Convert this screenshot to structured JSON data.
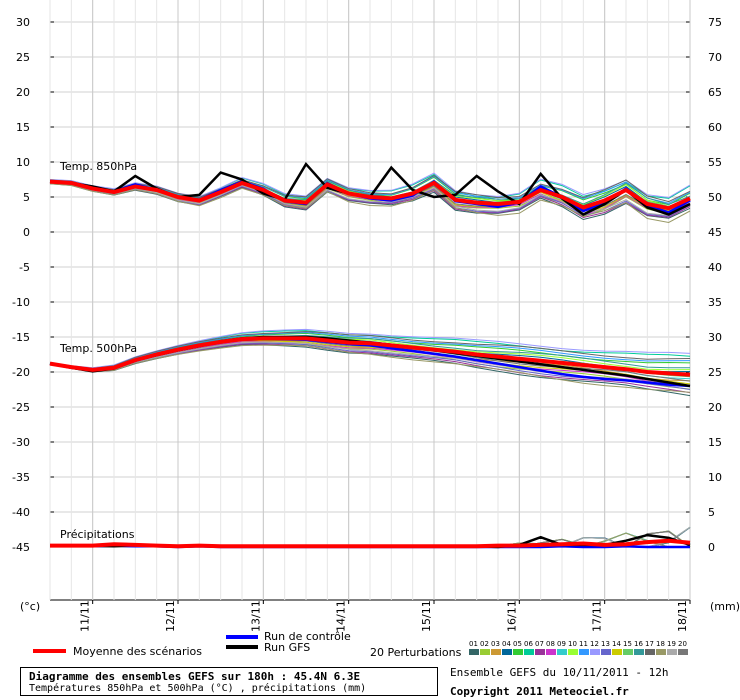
{
  "chart_data": {
    "type": "line",
    "panels": [
      {
        "label": "Temp. 850hPa",
        "unit_axis": "left"
      },
      {
        "label": "Temp. 500hPa",
        "unit_axis": "left"
      },
      {
        "label": "Précipitations",
        "unit_axis": "right"
      }
    ],
    "left_ticks": [
      "30",
      "25",
      "20",
      "15",
      "10",
      "5",
      "0",
      "-5",
      "-10",
      "-15",
      "-20",
      "-25",
      "-30",
      "-35",
      "-40",
      "-45"
    ],
    "right_ticks": [
      "75",
      "70",
      "65",
      "60",
      "55",
      "50",
      "45",
      "40",
      "35",
      "30",
      "25",
      "20",
      "15",
      "10",
      "5",
      "0"
    ],
    "left_unit": "(°c)",
    "right_unit": "(mm)",
    "x_dates": [
      "11/11",
      "12/11",
      "13/11",
      "14/11",
      "15/11",
      "16/11",
      "17/11",
      "18/11"
    ],
    "x_hours": [
      0,
      6,
      12,
      18,
      24,
      30,
      36,
      42,
      48,
      54,
      60,
      66,
      72,
      78,
      84,
      90,
      96,
      102,
      108,
      114,
      120,
      126,
      132,
      138,
      144,
      150,
      156,
      162,
      168,
      174,
      180
    ],
    "series": [
      {
        "name": "Moyenne des scénarios",
        "color": "#ff0000",
        "t850": [
          7.2,
          7.0,
          6.2,
          5.7,
          6.5,
          6.0,
          5.0,
          4.5,
          5.7,
          7.0,
          6.0,
          4.5,
          4.2,
          6.8,
          5.5,
          5.0,
          4.8,
          5.5,
          7.0,
          4.6,
          4.2,
          4.0,
          4.3,
          6.0,
          5.0,
          3.5,
          4.5,
          6.0,
          4.0,
          3.4,
          4.8
        ],
        "t500": [
          -18.8,
          -19.3,
          -19.7,
          -19.4,
          -18.3,
          -17.5,
          -16.8,
          -16.2,
          -15.7,
          -15.3,
          -15.2,
          -15.2,
          -15.2,
          -15.5,
          -15.8,
          -15.9,
          -16.2,
          -16.5,
          -16.8,
          -17.1,
          -17.5,
          -17.8,
          -18.1,
          -18.4,
          -18.7,
          -19.0,
          -19.3,
          -19.6,
          -20.0,
          -20.2,
          -20.4
        ],
        "precip": [
          0.2,
          0.2,
          0.2,
          0.4,
          0.3,
          0.2,
          0.1,
          0.2,
          0.1,
          0.1,
          0.1,
          0.1,
          0.1,
          0.1,
          0.1,
          0.1,
          0.1,
          0.1,
          0.1,
          0.1,
          0.1,
          0.2,
          0.2,
          0.3,
          0.4,
          0.5,
          0.3,
          0.4,
          0.7,
          0.9,
          0.6
        ]
      },
      {
        "name": "Run de contrôle",
        "color": "#0000ff",
        "t850": [
          7.2,
          7.0,
          6.3,
          5.8,
          6.8,
          6.0,
          5.0,
          4.6,
          6.0,
          7.2,
          6.2,
          4.4,
          4.0,
          7.0,
          5.5,
          4.8,
          4.5,
          5.2,
          7.2,
          4.4,
          4.0,
          3.6,
          4.2,
          6.5,
          5.0,
          3.0,
          4.2,
          6.2,
          3.8,
          2.8,
          4.5
        ],
        "t500": [
          -18.8,
          -19.4,
          -19.8,
          -19.5,
          -18.4,
          -17.6,
          -16.9,
          -16.3,
          -15.8,
          -15.4,
          -15.3,
          -15.3,
          -15.4,
          -15.7,
          -16.0,
          -16.2,
          -16.6,
          -17.0,
          -17.4,
          -17.8,
          -18.3,
          -18.8,
          -19.3,
          -19.8,
          -20.3,
          -20.7,
          -21.0,
          -21.2,
          -21.5,
          -21.8,
          -22.0
        ],
        "precip": [
          0.1,
          0.1,
          0.1,
          0.2,
          0.1,
          0.1,
          0.0,
          0.1,
          0.0,
          0.0,
          0.0,
          0.0,
          0.0,
          0.0,
          0.0,
          0.0,
          0.0,
          0.0,
          0.0,
          0.0,
          0.0,
          0.0,
          0.0,
          0.0,
          0.1,
          0.0,
          0.0,
          0.1,
          0.0,
          0.0,
          0.0
        ]
      },
      {
        "name": "Run GFS",
        "color": "#000000",
        "t850": [
          7.2,
          7.0,
          6.5,
          5.8,
          8.0,
          6.2,
          5.0,
          5.3,
          8.5,
          7.5,
          5.5,
          4.6,
          9.7,
          6.3,
          5.5,
          5.0,
          9.2,
          6.0,
          5.0,
          5.3,
          8.0,
          5.8,
          4.0,
          8.3,
          4.8,
          2.5,
          4.0,
          6.0,
          3.5,
          2.5,
          4.0
        ],
        "t500": [
          -18.8,
          -19.4,
          -19.9,
          -19.5,
          -18.3,
          -17.6,
          -16.9,
          -16.3,
          -15.6,
          -15.2,
          -15.0,
          -15.0,
          -15.0,
          -15.2,
          -15.5,
          -15.8,
          -16.1,
          -16.5,
          -16.9,
          -17.3,
          -17.7,
          -18.1,
          -18.5,
          -18.9,
          -19.3,
          -19.7,
          -20.1,
          -20.5,
          -21.0,
          -21.5,
          -22.0
        ],
        "precip": [
          0.2,
          0.2,
          0.2,
          0.1,
          0.3,
          0.2,
          0.1,
          0.2,
          0.1,
          0.1,
          0.1,
          0.1,
          0.1,
          0.1,
          0.1,
          0.1,
          0.1,
          0.1,
          0.1,
          0.1,
          0.1,
          0.0,
          0.3,
          1.4,
          0.3,
          0.3,
          0.3,
          0.9,
          1.7,
          1.3,
          0.3
        ]
      }
    ],
    "perturbation_colors": [
      "#336666",
      "#99cc33",
      "#cc9933",
      "#006699",
      "#33cc33",
      "#00cc99",
      "#993399",
      "#cc33cc",
      "#33cccc",
      "#99ff33",
      "#3399ff",
      "#9999ff",
      "#6666cc",
      "#cccc00",
      "#66cc66",
      "#339999",
      "#666666",
      "#999966",
      "#aaaaaa",
      "#777777"
    ]
  },
  "legend": {
    "mean": "Moyenne des scénarios",
    "control": "Run de contrôle",
    "gfs": "Run GFS",
    "perturbations": "20 Perturbations",
    "pert_numbers": [
      "01",
      "02",
      "03",
      "04",
      "05",
      "06",
      "07",
      "08",
      "09",
      "10",
      "11",
      "12",
      "13",
      "14",
      "15",
      "16",
      "17",
      "18",
      "19",
      "20"
    ]
  },
  "footer": {
    "title": "Diagramme des ensembles GEFS sur 180h : 45.4N 6.3E",
    "subtitle": "Températures 850hPa et 500hPa (°C) , précipitations (mm)",
    "run": "Ensemble GEFS du 10/11/2011 - 12h",
    "copyright": "Copyright 2011 Meteociel.fr"
  }
}
